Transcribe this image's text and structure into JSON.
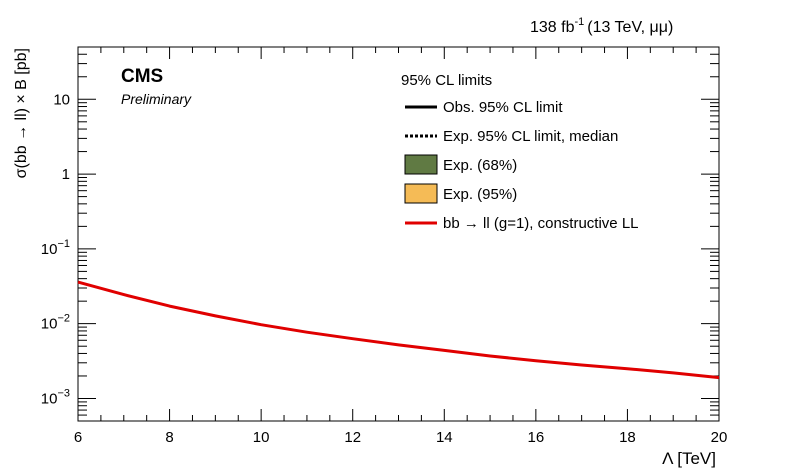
{
  "chart_data": {
    "type": "line",
    "lumi": {
      "value": "138 fb",
      "exp": "-1",
      "energy": "(13 TeV,  μμ)"
    },
    "experiment": "CMS",
    "status": "Preliminary",
    "xlabel": "Λ [TeV]",
    "ylabel": "σ(bb → ll) × B [pb]",
    "xlim": [
      6,
      20
    ],
    "ylim": [
      0.0005,
      50
    ],
    "yscale": "log",
    "x_ticks": [
      "6",
      "8",
      "10",
      "12",
      "14",
      "16",
      "18",
      "20"
    ],
    "y_ticks": [
      {
        "value": 0.001,
        "base": "10",
        "exp": "−3"
      },
      {
        "value": 0.01,
        "base": "10",
        "exp": "−2"
      },
      {
        "value": 0.1,
        "base": "10",
        "exp": "−1"
      },
      {
        "value": 1,
        "base": "1",
        "exp": ""
      },
      {
        "value": 10,
        "base": "10",
        "exp": ""
      }
    ],
    "legend": {
      "header": "95% CL limits",
      "position": "top-right",
      "entries": [
        {
          "label": "Obs. 95% CL limit",
          "style": "solid-line",
          "color": "#000000"
        },
        {
          "label": "Exp. 95% CL limit, median",
          "style": "dotted-line",
          "color": "#000000"
        },
        {
          "label": "Exp. (68%)",
          "style": "box",
          "color": "#607a43"
        },
        {
          "label": "Exp. (95%)",
          "style": "box",
          "color": "#f5bb56"
        },
        {
          "label": "bb → ll (g=1), constructive LL",
          "style": "solid-line",
          "color": "#e00000"
        }
      ]
    },
    "series": [
      {
        "name": "bb → ll (g=1), constructive LL",
        "color": "#e00000",
        "x": [
          6,
          7,
          8,
          9,
          10,
          11,
          12,
          13,
          14,
          15,
          16,
          17,
          18,
          19,
          20
        ],
        "y": [
          0.036,
          0.0245,
          0.0172,
          0.0127,
          0.0097,
          0.0077,
          0.0063,
          0.0052,
          0.0044,
          0.0037,
          0.0032,
          0.0028,
          0.0025,
          0.0022,
          0.0019
        ]
      }
    ]
  }
}
